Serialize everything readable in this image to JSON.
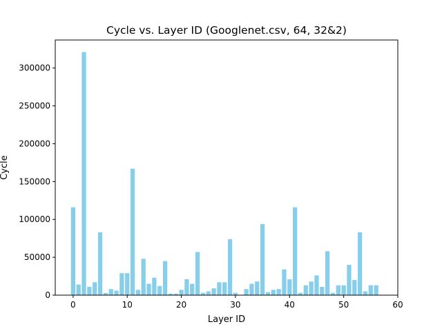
{
  "chart_data": {
    "type": "bar",
    "title": "Cycle vs. Layer ID (Googlenet.csv, 64, 32&2)",
    "xlabel": "Layer ID",
    "ylabel": "Cycle",
    "xlim": [
      -3.3,
      60
    ],
    "ylim": [
      0,
      337000
    ],
    "xticks": [
      0,
      10,
      20,
      30,
      40,
      50,
      60
    ],
    "yticks": [
      0,
      50000,
      100000,
      150000,
      200000,
      250000,
      300000
    ],
    "bar_color": "#87ceeb",
    "grid": false,
    "x": [
      0,
      1,
      2,
      3,
      4,
      5,
      6,
      7,
      8,
      9,
      10,
      11,
      12,
      13,
      14,
      15,
      16,
      17,
      18,
      19,
      20,
      21,
      22,
      23,
      24,
      25,
      26,
      27,
      28,
      29,
      30,
      31,
      32,
      33,
      34,
      35,
      36,
      37,
      38,
      39,
      40,
      41,
      42,
      43,
      44,
      45,
      46,
      47,
      48,
      49,
      50,
      51,
      52,
      53,
      54,
      55,
      56
    ],
    "values": [
      116000,
      14000,
      321000,
      11000,
      17000,
      83000,
      3000,
      8000,
      6000,
      29000,
      29000,
      167000,
      7000,
      48000,
      15000,
      23000,
      12000,
      45000,
      2000,
      2000,
      7000,
      21000,
      15000,
      57000,
      3000,
      5000,
      9000,
      17000,
      17000,
      74000,
      3000,
      0,
      8000,
      15000,
      18000,
      94000,
      4000,
      7000,
      8000,
      34000,
      21000,
      116000,
      3000,
      13000,
      18000,
      26000,
      11000,
      58000,
      3000,
      13000,
      13000,
      40000,
      20000,
      83000,
      5000,
      13000,
      13000
    ]
  }
}
